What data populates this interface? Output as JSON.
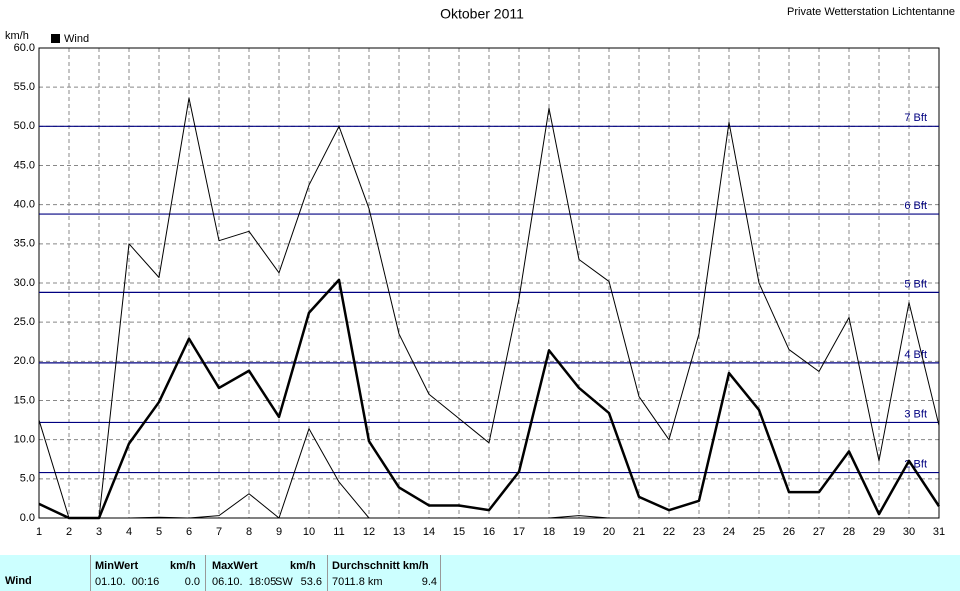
{
  "chart_data": {
    "type": "line",
    "title": "Oktober 2011",
    "subtitle": "Private Wetterstation Lichtentanne",
    "y_label": "km/h",
    "legend": "Wind",
    "legend_color": "#000000",
    "x": [
      1,
      2,
      3,
      4,
      5,
      6,
      7,
      8,
      9,
      10,
      11,
      12,
      13,
      14,
      15,
      16,
      17,
      18,
      19,
      20,
      21,
      22,
      23,
      24,
      25,
      26,
      27,
      28,
      29,
      30,
      31
    ],
    "xlim": [
      1,
      31
    ],
    "xticks": [
      1,
      2,
      3,
      4,
      5,
      6,
      7,
      8,
      9,
      10,
      11,
      12,
      13,
      14,
      15,
      16,
      17,
      18,
      19,
      20,
      21,
      22,
      23,
      24,
      25,
      26,
      27,
      28,
      29,
      30,
      31
    ],
    "ylim": [
      0,
      60
    ],
    "yticks": [
      {
        "value": 0,
        "label": "0.0"
      },
      {
        "value": 5,
        "label": "5.0"
      },
      {
        "value": 10,
        "label": "10.0"
      },
      {
        "value": 15,
        "label": "15.0"
      },
      {
        "value": 20,
        "label": "20.0"
      },
      {
        "value": 25,
        "label": "25.0"
      },
      {
        "value": 30,
        "label": "30.0"
      },
      {
        "value": 35,
        "label": "35.0"
      },
      {
        "value": 40,
        "label": "40.0"
      },
      {
        "value": 45,
        "label": "45.0"
      },
      {
        "value": 50,
        "label": "50.0"
      },
      {
        "value": 55,
        "label": "55.0"
      },
      {
        "value": 60,
        "label": "60.0"
      }
    ],
    "grid": true,
    "beaufort": [
      {
        "value": 5.8,
        "label": "2 Bft"
      },
      {
        "value": 12.2,
        "label": "3 Bft"
      },
      {
        "value": 19.8,
        "label": "4 Bft"
      },
      {
        "value": 28.8,
        "label": "5 Bft"
      },
      {
        "value": 38.8,
        "label": "6 Bft"
      },
      {
        "value": 50.0,
        "label": "7 Bft"
      }
    ],
    "beaufort_color": "#000080",
    "series": [
      {
        "color": "#000000",
        "width": 1,
        "values": [
          12.5,
          0,
          0,
          35.0,
          30.7,
          53.6,
          35.4,
          36.6,
          31.3,
          42.5,
          50.0,
          39.5,
          23.5,
          15.8,
          12.7,
          9.6,
          28.0,
          52.3,
          33.0,
          30.2,
          15.5,
          10.0,
          23.5,
          50.5,
          30.0,
          21.5,
          18.7,
          25.6,
          7.3,
          27.5,
          11.8
        ]
      },
      {
        "color": "#000000",
        "width": 2.5,
        "values": [
          1.8,
          0,
          0,
          9.5,
          14.8,
          22.9,
          16.6,
          18.8,
          12.9,
          26.2,
          30.4,
          9.8,
          3.9,
          1.6,
          1.6,
          1.0,
          5.9,
          21.4,
          16.6,
          13.4,
          2.7,
          1.0,
          2.2,
          18.5,
          13.8,
          3.3,
          3.3,
          8.5,
          0.5,
          7.3,
          1.5
        ]
      },
      {
        "color": "#000000",
        "width": 1,
        "values": [
          0,
          0,
          0,
          0,
          0.1,
          0,
          0.3,
          3.1,
          0,
          11.4,
          4.6,
          0,
          0,
          0,
          0,
          0,
          0,
          0,
          0.3,
          0,
          0,
          0,
          0,
          0,
          0,
          0,
          0,
          0,
          0,
          0,
          0
        ]
      }
    ]
  },
  "table": {
    "row_label": "Wind",
    "min": {
      "header": "MinWert",
      "unit": "km/h",
      "time": "01.10.  00:16",
      "value": "0.0"
    },
    "max": {
      "header": "MaxWert",
      "unit": "km/h",
      "time": "06.10.  18:05",
      "dir": "SW",
      "value": "53.6"
    },
    "avg": {
      "header": "Durchschnitt km/h",
      "distance": "7011.8 km",
      "value": "9.4"
    }
  }
}
